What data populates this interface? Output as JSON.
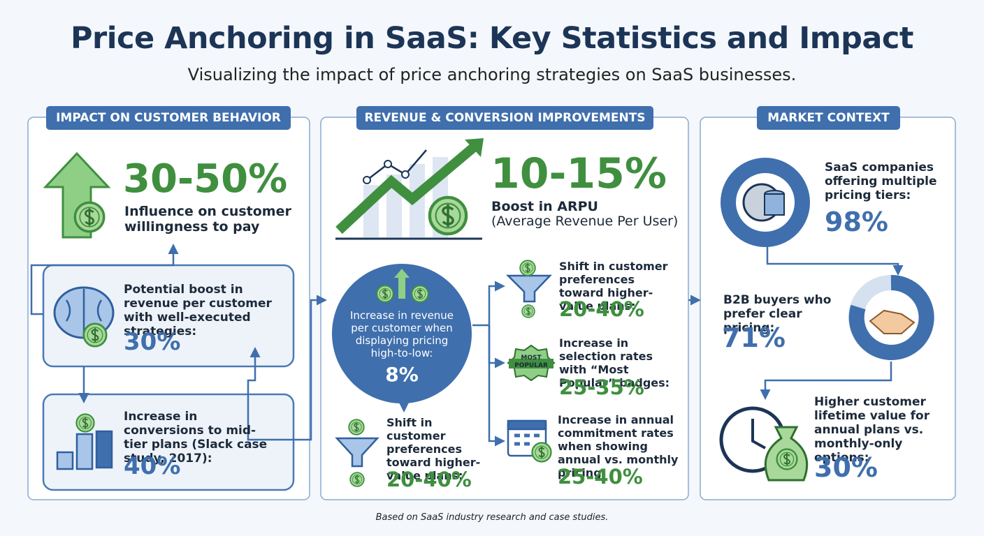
{
  "header": {
    "title": "Price Anchoring in SaaS: Key Statistics and Impact",
    "subtitle": "Visualizing the impact of price anchoring strategies on SaaS businesses."
  },
  "panels": [
    {
      "heading": "IMPACT ON CUSTOMER BEHAVIOR",
      "hero": {
        "value": "30-50%",
        "label": "Influence on customer willingness to pay"
      },
      "cards": [
        {
          "label": "Potential boost in revenue per customer with well-executed strategies:",
          "value": "30%"
        },
        {
          "label": "Increase in conversions to mid-tier plans (Slack case study, 2017):",
          "value": "40%"
        }
      ]
    },
    {
      "heading": "REVENUE & CONVERSION IMPROVEMENTS",
      "hero": {
        "value": "10-15%",
        "label": "Boost in ARPU",
        "note": "(Average Revenue Per User)"
      },
      "circle": {
        "label": "Increase in revenue per customer when displaying pricing high-to-low:",
        "value": "8%"
      },
      "items": [
        {
          "label": "Shift in customer preferences toward higher-value plans:",
          "value": "20-40%"
        },
        {
          "label": "Shift in customer preferences toward higher-value plans:",
          "value": "20-40%"
        },
        {
          "label": "Increase in selection rates with “Most Popular” badges:",
          "value": "25-35%",
          "badge": "MOST POPULAR"
        },
        {
          "label": "Increase in annual commitment rates when showing annual vs. monthly pricing:",
          "value": "25-40%"
        }
      ]
    },
    {
      "heading": "MARKET CONTEXT",
      "items": [
        {
          "label": "SaaS companies offering multiple pricing tiers:",
          "value": "98%"
        },
        {
          "label": "B2B buyers who prefer clear pricing:",
          "value": "71%"
        },
        {
          "label": "Higher customer lifetime value for annual plans vs. monthly-only options:",
          "value": "30%"
        }
      ]
    }
  ],
  "footer": {
    "note": "Based on SaaS industry research and case studies."
  }
}
